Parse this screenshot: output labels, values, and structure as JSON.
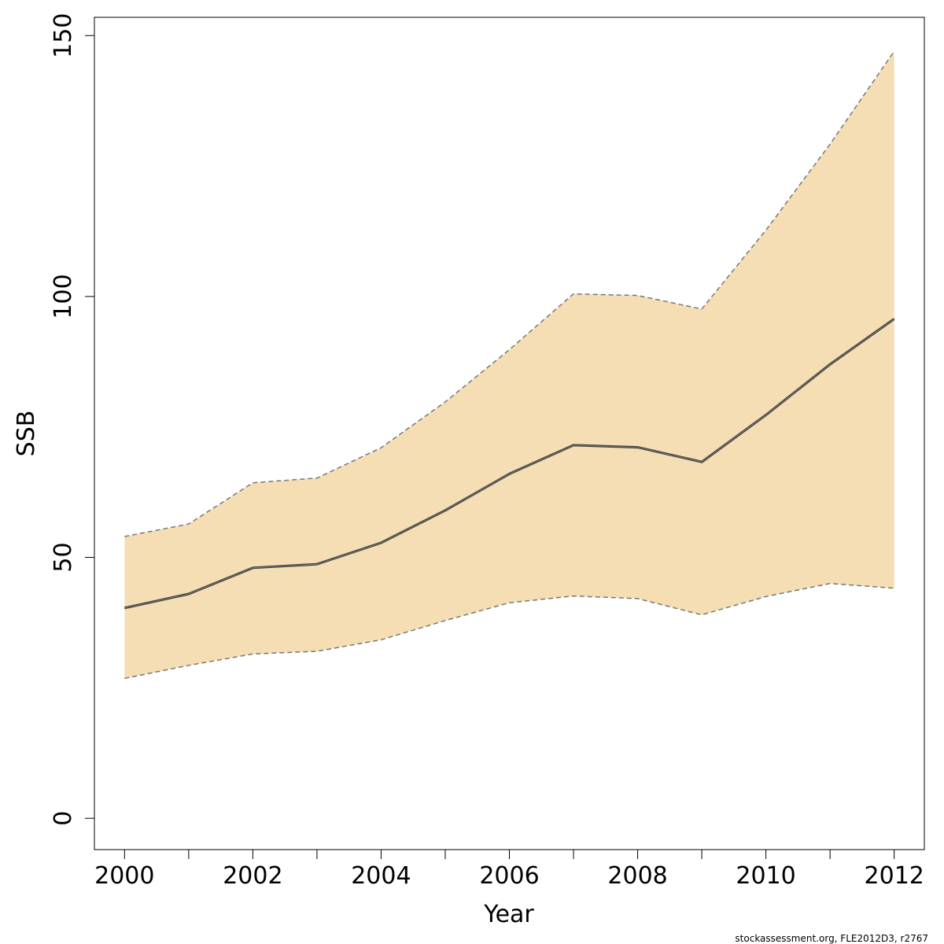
{
  "chart_data": {
    "type": "area",
    "xlabel": "Year",
    "ylabel": "SSB",
    "x": [
      2000,
      2001,
      2002,
      2003,
      2004,
      2005,
      2006,
      2007,
      2008,
      2009,
      2010,
      2011,
      2012
    ],
    "xticks": [
      2000,
      2002,
      2004,
      2006,
      2008,
      2010,
      2012
    ],
    "xtick_labels": [
      "2000",
      "2002",
      "2004",
      "2006",
      "2008",
      "2010",
      "2012"
    ],
    "yticks": [
      0,
      50,
      100,
      150
    ],
    "ytick_labels": [
      "0",
      "50",
      "100",
      "150"
    ],
    "xlim": [
      1999.53,
      2012.47
    ],
    "ylim": [
      -6,
      153.5
    ],
    "grid": false,
    "series": [
      {
        "role": "estimate",
        "values": [
          40.3,
          43.0,
          48.0,
          48.7,
          52.8,
          59.0,
          66.0,
          71.5,
          71.1,
          68.3,
          77.3,
          87.0,
          95.7
        ]
      },
      {
        "role": "upper",
        "values": [
          54.0,
          56.4,
          64.3,
          65.2,
          71.0,
          79.8,
          89.8,
          100.5,
          100.2,
          97.6,
          112.7,
          129.2,
          147.0
        ]
      },
      {
        "role": "lower",
        "values": [
          26.8,
          29.3,
          31.5,
          32.0,
          34.2,
          37.9,
          41.3,
          42.6,
          42.1,
          39.0,
          42.5,
          45.0,
          44.1
        ]
      }
    ],
    "colors": {
      "band": "#f5deb3",
      "line": "#3a3a3a",
      "bound": "#777777",
      "axis": "#000000"
    }
  },
  "footnote": "stockassessment.org, FLE2012D3, r2767"
}
